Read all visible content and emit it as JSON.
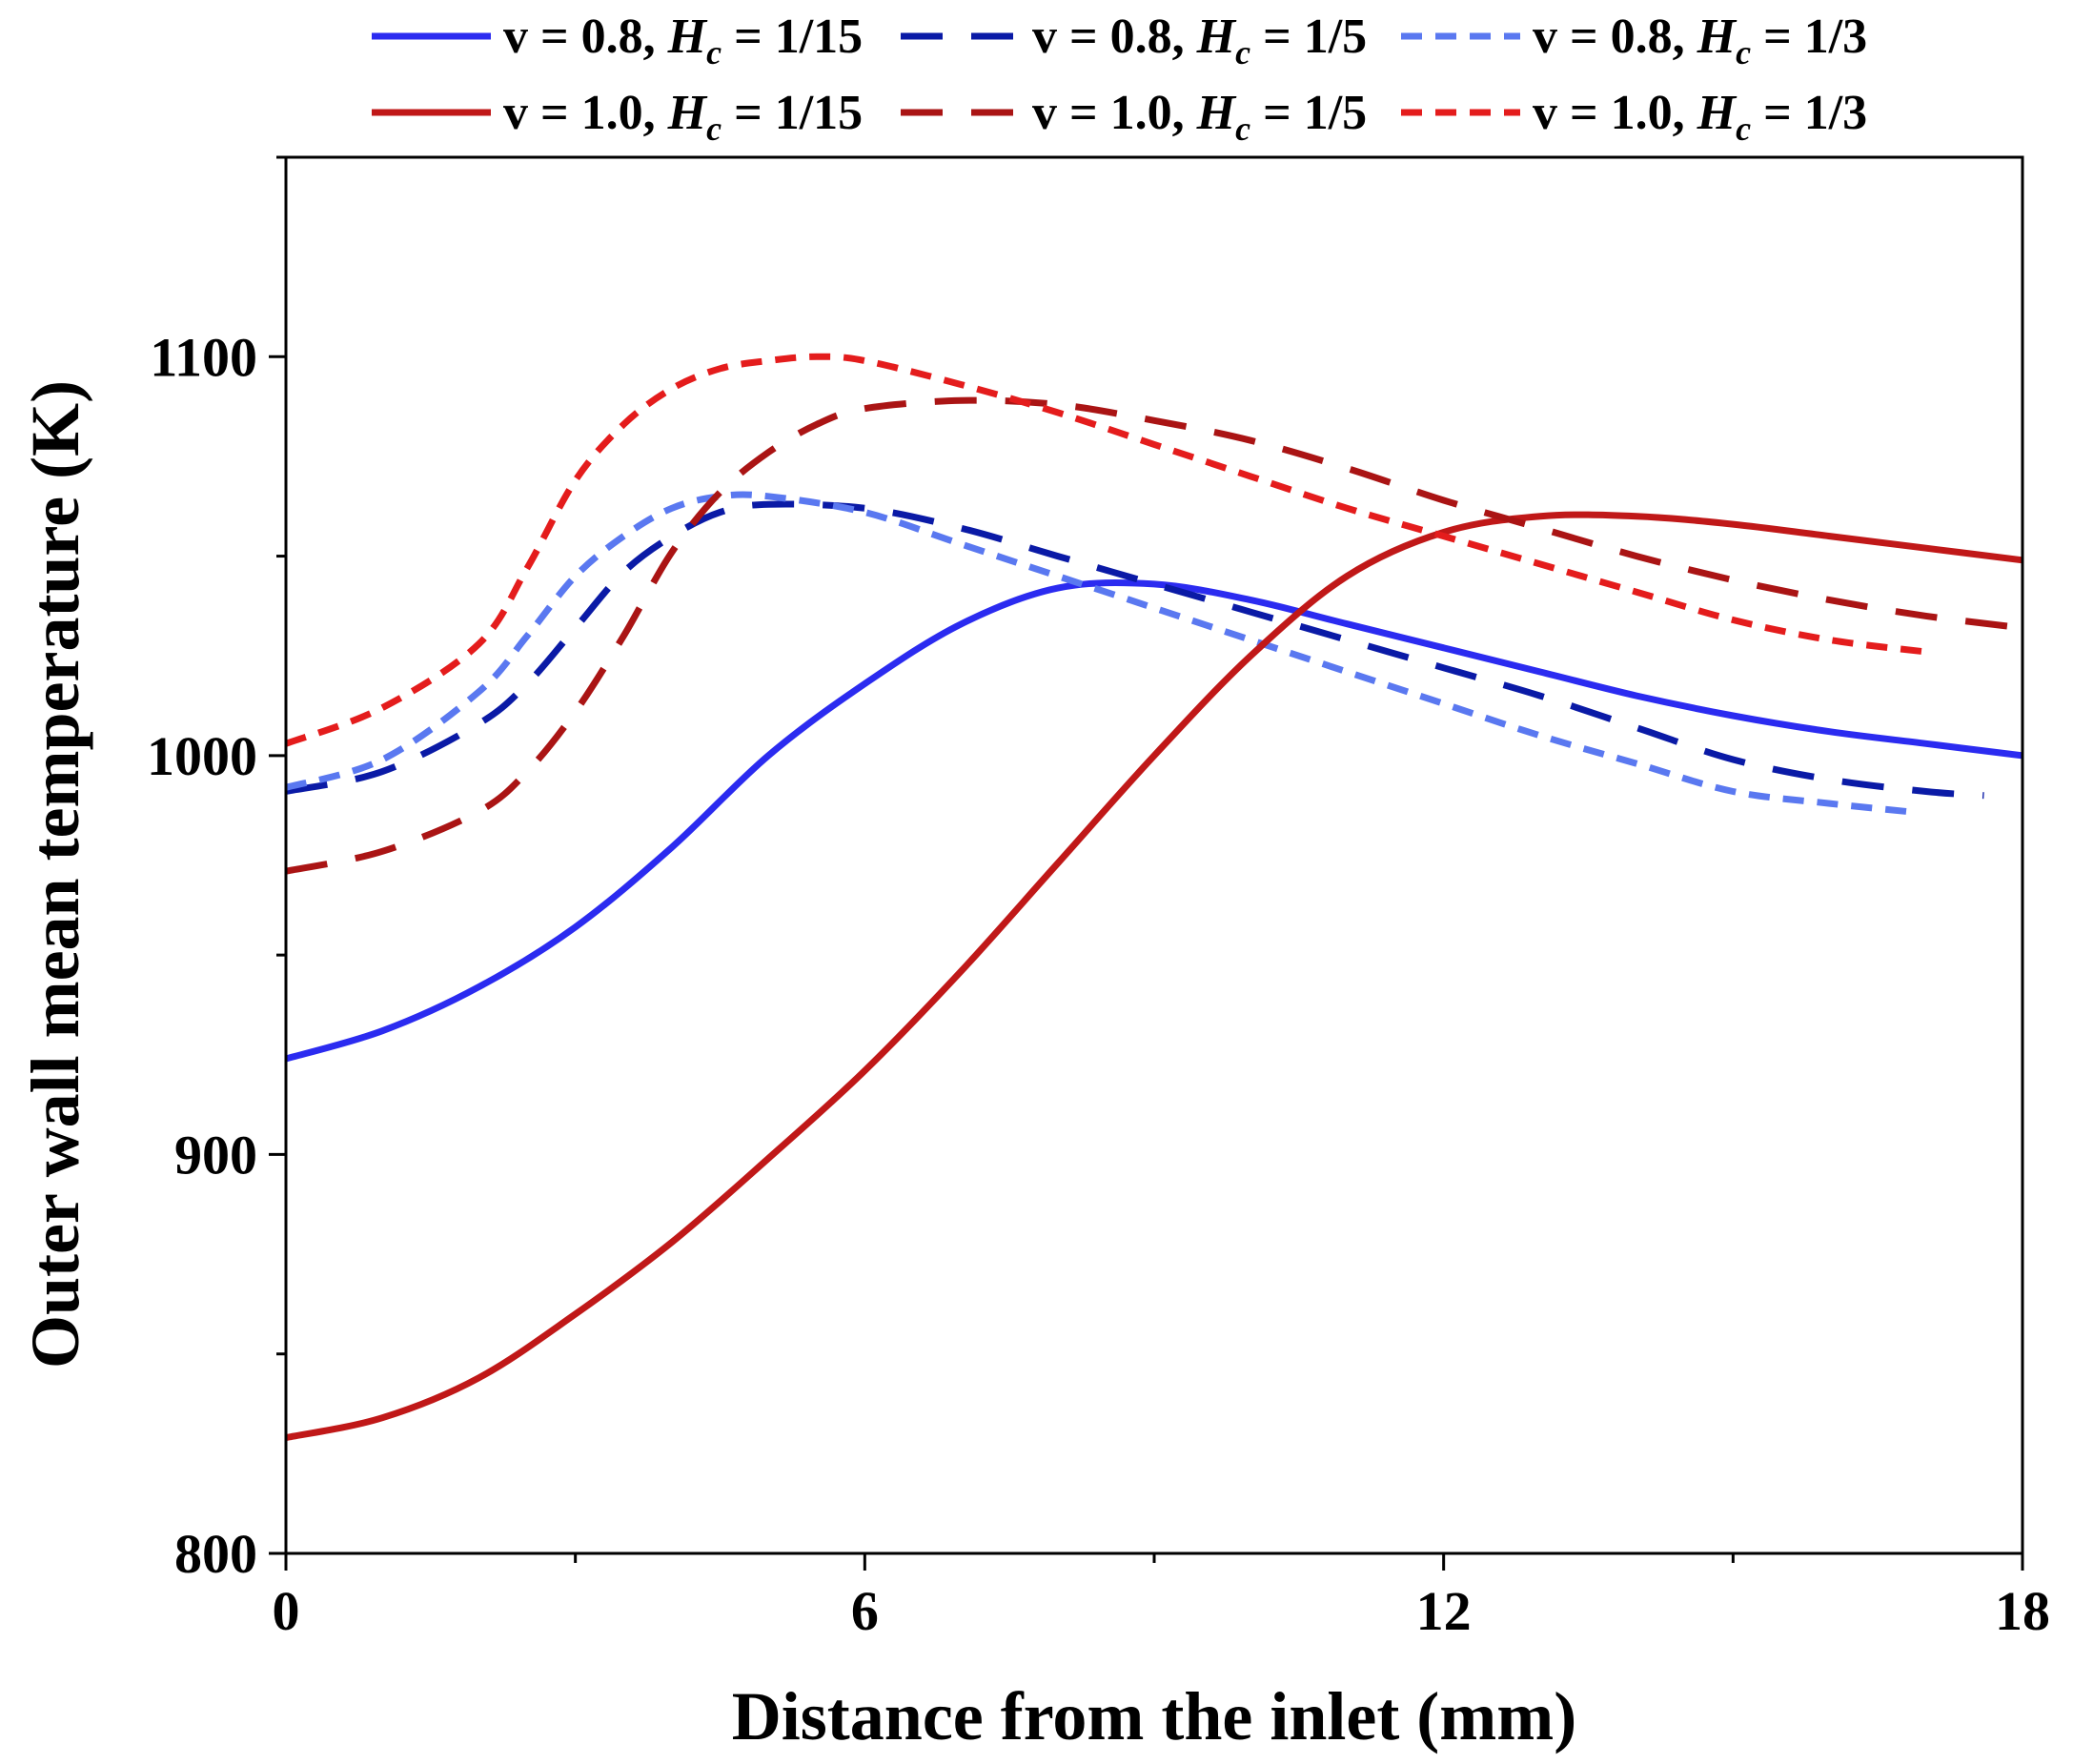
{
  "chart_data": {
    "type": "line",
    "xlabel": "Distance from the inlet (mm)",
    "ylabel": "Outer wall mean temperature (K)",
    "xlim": [
      0,
      18
    ],
    "ylim": [
      800,
      1150
    ],
    "xticks": [
      0,
      6,
      12,
      18
    ],
    "xtick_labels": [
      "0",
      "6",
      "12",
      "18"
    ],
    "yticks": [
      800,
      900,
      1000,
      1100
    ],
    "ytick_labels": [
      "800",
      "900",
      "1000",
      "1100"
    ],
    "legend_position": "top",
    "series": [
      {
        "name": "v = 0.8, Hc = 1/15",
        "label": {
          "prefix": "v = 0.8, ",
          "var": "H",
          "sub": "c",
          "suffix": " = 1/15"
        },
        "color": "#2b2bf0",
        "style": "solid",
        "x": [
          0,
          1,
          2,
          3,
          4,
          5,
          6,
          7,
          8,
          9,
          10,
          11,
          12,
          13,
          14,
          15,
          16,
          17,
          18
        ],
        "y": [
          924,
          931,
          942,
          957,
          977,
          1000,
          1018,
          1033,
          1042,
          1043,
          1039,
          1033,
          1027,
          1021,
          1015,
          1010,
          1006,
          1003,
          1000
        ]
      },
      {
        "name": "v = 0.8, Hc = 1/5",
        "label": {
          "prefix": "v = 0.8, ",
          "var": "H",
          "sub": "c",
          "suffix": " = 1/5"
        },
        "color": "#0a1aa6",
        "style": "dashed",
        "x": [
          0,
          1,
          2,
          2.5,
          3,
          3.5,
          4,
          4.5,
          5,
          6,
          7,
          8,
          9,
          10,
          11,
          12,
          13,
          14,
          15,
          16,
          17,
          17.6
        ],
        "y": [
          991,
          996,
          1008,
          1018,
          1032,
          1046,
          1055,
          1061,
          1063,
          1062,
          1057,
          1050,
          1043,
          1036,
          1029,
          1022,
          1015,
          1007,
          999,
          994,
          991,
          990
        ]
      },
      {
        "name": "v = 0.8, Hc = 1/3",
        "label": {
          "prefix": "v = 0.8, ",
          "var": "H",
          "sub": "c",
          "suffix": " = 1/3"
        },
        "color": "#5a78f0",
        "style": "dotted",
        "x": [
          0,
          1,
          2,
          2.5,
          3,
          3.5,
          4,
          4.5,
          5,
          6,
          7,
          8,
          9,
          10,
          11,
          12,
          13,
          14,
          15,
          16,
          16.8
        ],
        "y": [
          992,
          999,
          1016,
          1030,
          1045,
          1055,
          1062,
          1065,
          1065,
          1061,
          1053,
          1045,
          1037,
          1029,
          1021,
          1013,
          1005,
          998,
          991,
          988,
          986
        ]
      },
      {
        "name": "v = 1.0, Hc = 1/15",
        "label": {
          "prefix": "v = 1.0, ",
          "var": "H",
          "sub": "c",
          "suffix": " = 1/15"
        },
        "color": "#c01818",
        "style": "solid",
        "x": [
          0,
          1,
          2,
          3,
          4,
          5,
          6,
          7,
          8,
          9,
          10,
          11,
          12,
          13,
          14,
          15,
          16,
          17,
          18
        ],
        "y": [
          829,
          834,
          844,
          860,
          878,
          899,
          921,
          946,
          973,
          1000,
          1025,
          1045,
          1056,
          1060,
          1060,
          1058,
          1055,
          1052,
          1049
        ]
      },
      {
        "name": "v = 1.0, Hc = 1/5",
        "label": {
          "prefix": "v = 1.0, ",
          "var": "H",
          "sub": "c",
          "suffix": " = 1/5"
        },
        "color": "#aa1414",
        "style": "dashed",
        "x": [
          0,
          1,
          2,
          2.5,
          3,
          3.5,
          4,
          4.5,
          5,
          5.5,
          6,
          7,
          8,
          9,
          10,
          11,
          12,
          13,
          14,
          15,
          16,
          17,
          18
        ],
        "y": [
          971,
          976,
          986,
          996,
          1011,
          1030,
          1051,
          1066,
          1076,
          1083,
          1087,
          1089,
          1088,
          1084,
          1079,
          1072,
          1064,
          1057,
          1050,
          1044,
          1039,
          1035,
          1032
        ]
      },
      {
        "name": "v = 1.0, Hc = 1/3",
        "label": {
          "prefix": "v = 1.0, ",
          "var": "H",
          "sub": "c",
          "suffix": " = 1/3"
        },
        "color": "#e41c1c",
        "style": "dotted",
        "x": [
          0,
          1,
          2,
          2.5,
          3,
          3.5,
          4,
          4.5,
          5,
          5.5,
          6,
          7,
          8,
          9,
          10,
          11,
          12,
          13,
          14,
          15,
          16,
          17
        ],
        "y": [
          1003,
          1012,
          1028,
          1047,
          1069,
          1083,
          1092,
          1097,
          1099,
          1100,
          1099,
          1093,
          1086,
          1078,
          1070,
          1062,
          1055,
          1048,
          1041,
          1034,
          1029,
          1026
        ]
      }
    ]
  }
}
